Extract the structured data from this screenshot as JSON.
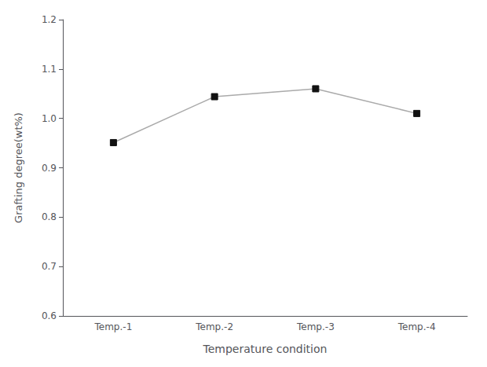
{
  "chart_data": {
    "type": "line",
    "categories": [
      "Temp.-1",
      "Temp.-2",
      "Temp.-3",
      "Temp.-4"
    ],
    "values": [
      0.951,
      1.044,
      1.06,
      1.01
    ],
    "color": "#aaaaaa",
    "colors": [
      "#111111",
      "#111111",
      "#111111",
      "#111111"
    ],
    "marker": "square",
    "xlabel": "Temperature condition",
    "ylabel": "Grafting degree(wt%)",
    "ylim": [
      0.6,
      1.2
    ],
    "yticks": [
      0.6,
      0.7,
      0.8,
      0.9,
      {
        "value": 1.0,
        "label": "1.0"
      },
      1.1,
      1.2
    ],
    "grid": false
  }
}
